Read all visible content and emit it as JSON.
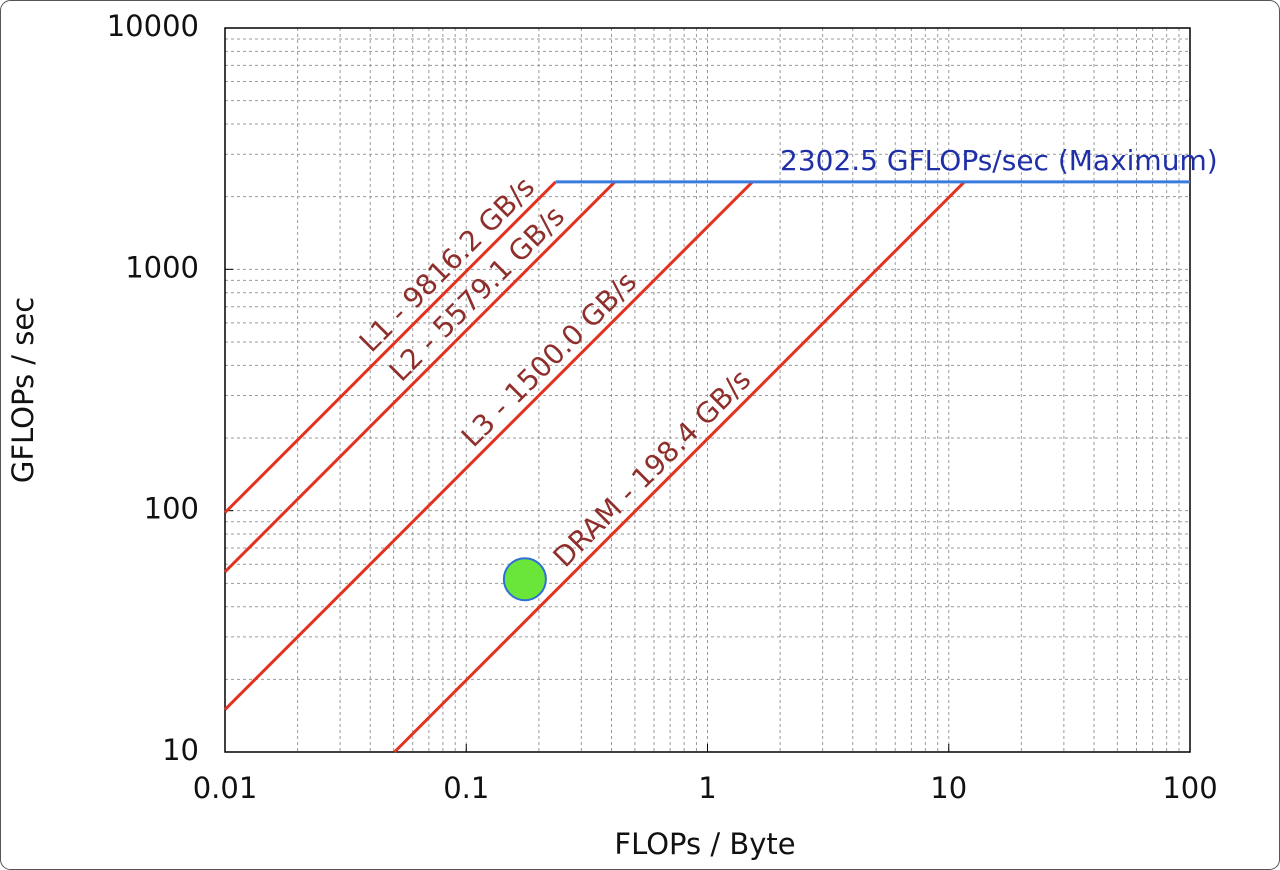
{
  "chart_data": {
    "type": "roofline",
    "x_label": "FLOPs / Byte",
    "y_label": "GFLOPs / sec",
    "xlim": [
      0.01,
      100
    ],
    "ylim": [
      10,
      10000
    ],
    "xticks": [
      0.01,
      0.1,
      1,
      10,
      100
    ],
    "yticks": [
      10,
      100,
      1000,
      10000
    ],
    "log_x": true,
    "log_y": true,
    "grid": true,
    "minor_grid": true,
    "peak": {
      "label": "2302.5 GFLOPs/sec (Maximum)",
      "value": 2302.5,
      "color": "#3a7be0"
    },
    "rooflines": [
      {
        "label": "L1 - 9816.2 GB/s",
        "bandwidth": 9816.2,
        "color": "#e3321f"
      },
      {
        "label": "L2 - 5579.1 GB/s",
        "bandwidth": 5579.1,
        "color": "#e3321f"
      },
      {
        "label": "L3 - 1500.0 GB/s",
        "bandwidth": 1500.0,
        "color": "#e3321f"
      },
      {
        "label": "DRAM - 198.4 GB/s",
        "bandwidth": 198.4,
        "color": "#e3321f"
      }
    ],
    "points": {
      "x": [
        0.175
      ],
      "values": [
        52
      ],
      "color": "#6ae63a"
    }
  }
}
